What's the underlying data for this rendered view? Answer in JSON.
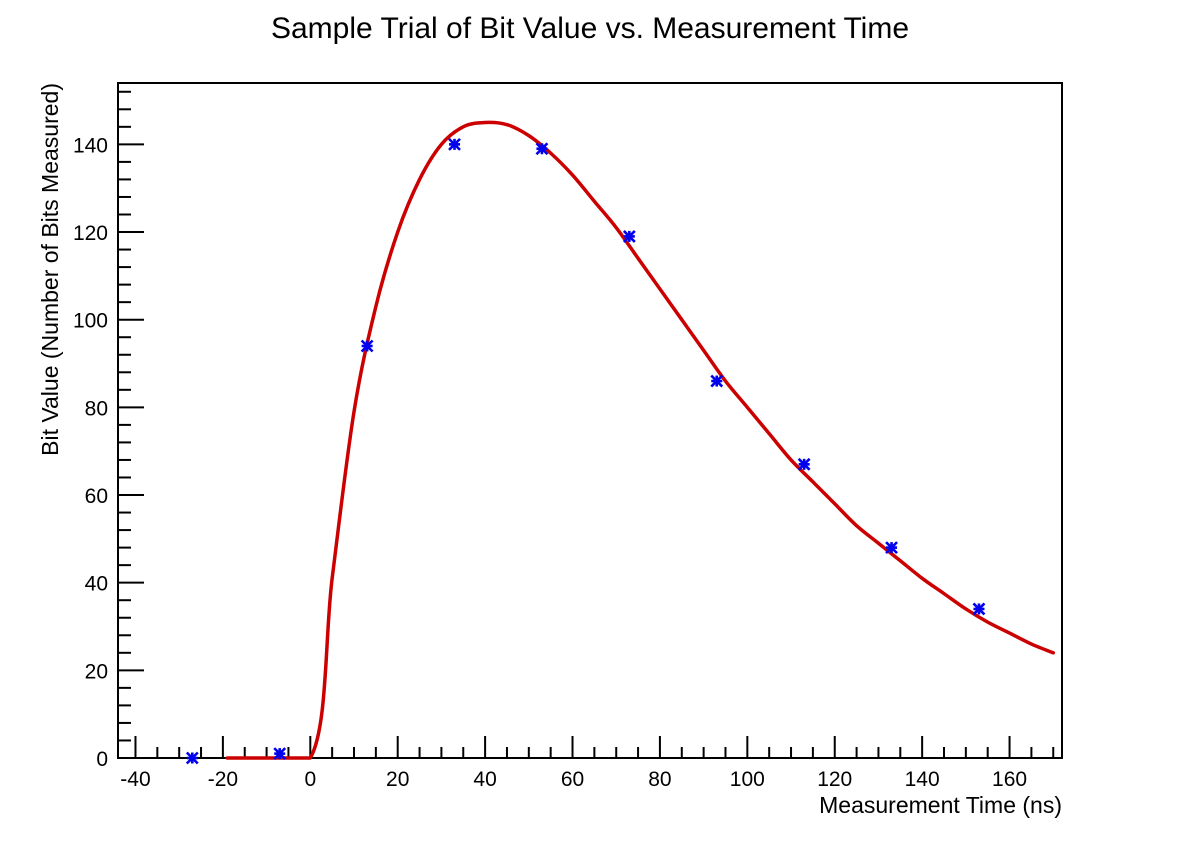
{
  "chart_data": {
    "type": "scatter",
    "title": "Sample Trial of Bit Value vs. Measurement Time",
    "xlabel": "Measurement Time (ns)",
    "ylabel": "Bit Value (Number of Bits Measured)",
    "xlim": [
      -44,
      172
    ],
    "ylim": [
      0,
      154
    ],
    "x_ticks": [
      -40,
      -20,
      0,
      20,
      40,
      60,
      80,
      100,
      120,
      140,
      160
    ],
    "y_ticks": [
      0,
      20,
      40,
      60,
      80,
      100,
      120,
      140
    ],
    "grid": false,
    "legend": "none",
    "series": [
      {
        "kind": "points",
        "marker": "star",
        "color": "#0000ee",
        "x": [
          -27,
          -7,
          13,
          33,
          53,
          73,
          93,
          113,
          133,
          153
        ],
        "y": [
          0,
          1,
          94,
          140,
          139,
          119,
          86,
          67,
          48,
          34
        ]
      },
      {
        "kind": "fit-curve",
        "color": "#cc0000",
        "x": [
          -19,
          0,
          5,
          10,
          15,
          20,
          25,
          30,
          35,
          40,
          45,
          50,
          55,
          60,
          65,
          70,
          75,
          80,
          85,
          90,
          95,
          100,
          105,
          110,
          115,
          120,
          125,
          130,
          135,
          140,
          145,
          150,
          155,
          160,
          165,
          170
        ],
        "y": [
          0,
          0,
          41,
          79,
          103,
          120,
          132,
          140,
          144,
          145,
          144.5,
          142,
          138,
          133,
          127,
          121,
          114,
          107,
          100,
          93,
          86,
          80,
          74,
          68,
          63,
          58,
          53,
          49,
          45,
          41,
          37.5,
          34,
          31,
          28.5,
          26,
          24
        ]
      }
    ]
  }
}
